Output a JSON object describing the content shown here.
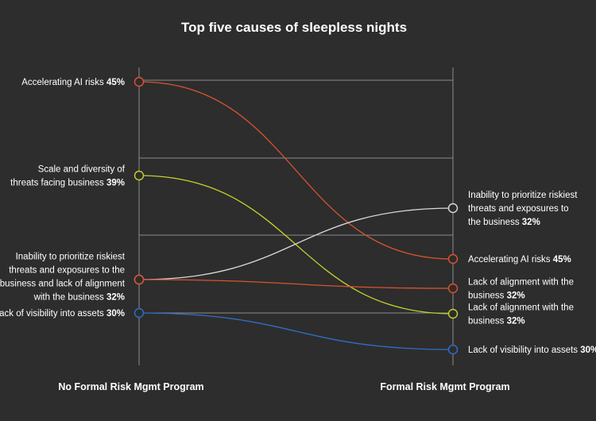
{
  "chart_data": {
    "type": "slope",
    "title": "Top five causes of sleepless nights",
    "columns": [
      "No Formal Risk Mgmt Program",
      "Formal Risk Mgmt Program"
    ],
    "series": [
      {
        "color": "#d9532f",
        "left": {
          "lines": [
            "Accelerating AI risks"
          ],
          "value": 45,
          "pct": "45%"
        },
        "right": {
          "lines": [
            "Accelerating AI risks"
          ],
          "value": 45,
          "pct": "45%"
        }
      },
      {
        "color": "#c6d12b",
        "left": {
          "lines": [
            "Scale and diversity of",
            "threats facing business"
          ],
          "value": 39,
          "pct": "39%"
        },
        "right": {
          "lines": [
            "Lack of alignment with the",
            "business"
          ],
          "value": 32,
          "pct": "32%"
        }
      },
      {
        "color": "#d9d9d9",
        "left": {
          "lines": [
            "Inability to prioritize riskiest",
            "threats and exposures to the",
            "business and lack of alignment",
            "with the business"
          ],
          "value": 32,
          "pct": "32%"
        },
        "right": {
          "lines": [
            "Inability to prioritize riskiest",
            "threats and exposures to",
            "the business"
          ],
          "value": 32,
          "pct": "32%"
        }
      },
      {
        "color": "#d9532f",
        "left": {
          "lines": [],
          "value": 32,
          "pct": ""
        },
        "right": {
          "lines": [
            "Lack of alignment with the",
            "business"
          ],
          "value": 32,
          "pct": "32%"
        }
      },
      {
        "color": "#2f6fc6",
        "left": {
          "lines": [
            "Lack of visibility into assets"
          ],
          "value": 30,
          "pct": "30%"
        },
        "right": {
          "lines": [
            "Lack of visibility into assets"
          ],
          "value": 30,
          "pct": "30%"
        }
      }
    ],
    "grid": true,
    "legend": "none"
  }
}
